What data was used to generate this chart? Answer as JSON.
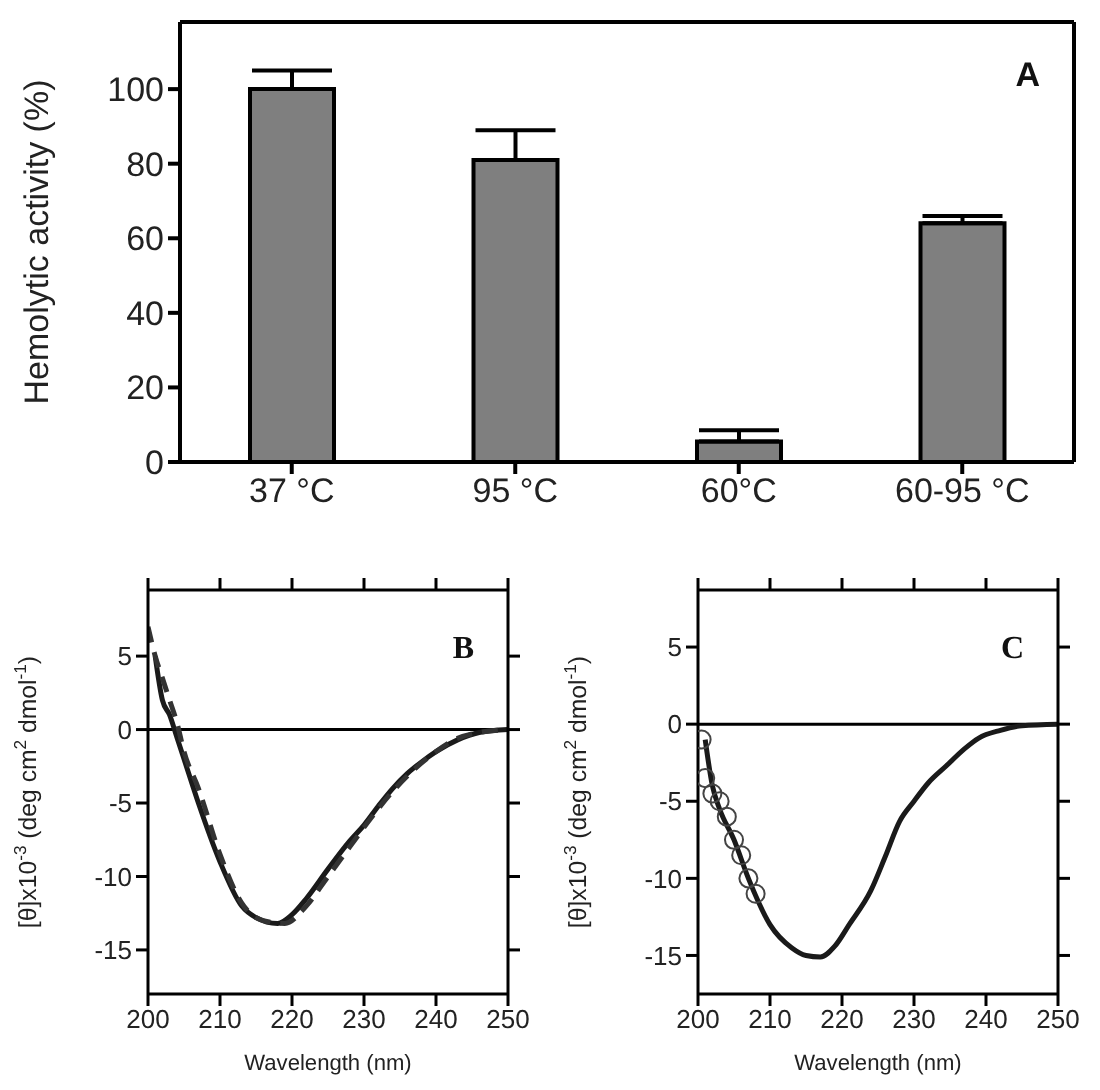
{
  "chart_data": [
    {
      "type": "bar",
      "ylabel": "Hemolytic activity (%)",
      "categories": [
        "37 °C",
        "95 °C",
        "60°C",
        "60-95 °C"
      ],
      "values": [
        100,
        81,
        5.5,
        64
      ],
      "errors": [
        [
          100,
          105
        ],
        [
          81,
          89
        ],
        [
          5.5,
          8.5
        ],
        [
          64,
          66
        ]
      ],
      "color": "#7f7f7f",
      "ylim": [
        0,
        118
      ],
      "yticks": [
        0,
        20,
        40,
        60,
        80,
        100
      ],
      "annotations": [
        "A"
      ]
    },
    {
      "type": "line",
      "xlabel": "Wavelength (nm)",
      "ylabel": "[θ]x10$^{-3}$ (deg cm$^{2}$ dmol$^{-1}$)",
      "xlim": [
        200,
        250
      ],
      "xticks": [
        200,
        210,
        220,
        230,
        240,
        250
      ],
      "ylim": [
        -18,
        9.5
      ],
      "yticks": [
        -15,
        -10,
        -5,
        0,
        5
      ],
      "annotations": [
        "B"
      ],
      "ref_lines": [
        {
          "axis": "y",
          "value": 0,
          "color": "#000000"
        }
      ],
      "series": [
        {
          "color": "#1a1a1a",
          "line_style": "solid",
          "x": [
            201,
            202,
            203,
            204,
            205,
            207,
            210,
            213,
            215,
            218,
            220,
            222,
            225,
            228,
            230,
            232,
            234,
            236,
            238,
            240,
            243,
            246,
            250
          ],
          "values": [
            5,
            2,
            1,
            -0.5,
            -2,
            -5,
            -9,
            -12,
            -12.8,
            -13.2,
            -12.6,
            -11.5,
            -9.5,
            -7.6,
            -6.5,
            -5.2,
            -4,
            -3,
            -2.2,
            -1.5,
            -0.7,
            -0.2,
            0
          ]
        },
        {
          "color": "#333333",
          "line_style": "dashed",
          "x": [
            200,
            201,
            202,
            203,
            204,
            205,
            207,
            210,
            213,
            216,
            219,
            222,
            225,
            228,
            231,
            234,
            237,
            240,
            243,
            246,
            250
          ],
          "values": [
            7,
            5,
            3.5,
            2,
            0.5,
            -1.5,
            -4,
            -8.5,
            -11.8,
            -13,
            -13.2,
            -12,
            -10,
            -8,
            -6,
            -4.2,
            -2.7,
            -1.5,
            -0.6,
            -0.2,
            0
          ]
        }
      ]
    },
    {
      "type": "line",
      "xlabel": "Wavelength (nm)",
      "ylabel": "[θ]x10$^{-3}$ (deg cm$^{2}$ dmol$^{-1}$)",
      "xlim": [
        200,
        250
      ],
      "xticks": [
        200,
        210,
        220,
        230,
        240,
        250
      ],
      "ylim": [
        -17.5,
        8.7
      ],
      "yticks": [
        -15,
        -10,
        -5,
        0,
        5
      ],
      "annotations": [
        "C"
      ],
      "ref_lines": [
        {
          "axis": "y",
          "value": 0,
          "color": "#000000"
        }
      ],
      "series": [
        {
          "color": "#1a1a1a",
          "line_style": "solid",
          "x": [
            201,
            202,
            203,
            205,
            207,
            210,
            213,
            215,
            217,
            219,
            221,
            224,
            226,
            228,
            230,
            232,
            234.5,
            237,
            239,
            242,
            245,
            250
          ],
          "values": [
            -1,
            -4,
            -5.5,
            -7.5,
            -10,
            -13,
            -14.5,
            -15,
            -15.1,
            -14.4,
            -13,
            -10.8,
            -8.6,
            -6.3,
            -5,
            -3.8,
            -2.7,
            -1.6,
            -0.9,
            -0.4,
            -0.1,
            0
          ]
        },
        {
          "type": "scatter",
          "marker": "circle",
          "color": "#444444",
          "x": [
            200.5,
            201,
            202,
            203,
            204,
            205,
            206,
            207,
            208
          ],
          "values": [
            -1,
            -3.5,
            -4.5,
            -5,
            -6,
            -7.5,
            -8.5,
            -10,
            -11
          ]
        }
      ]
    }
  ]
}
